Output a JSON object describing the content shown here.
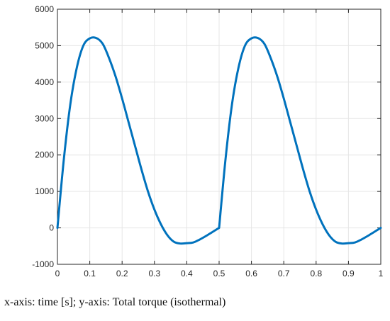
{
  "caption": "x-axis: time [s]; y-axis: Total torque (isothermal)",
  "chart_data": {
    "type": "line",
    "title": "",
    "xlabel": "",
    "ylabel": "",
    "xlim": [
      0,
      1
    ],
    "ylim": [
      -1000,
      6000
    ],
    "x_ticks": [
      0,
      0.1,
      0.2,
      0.3,
      0.4,
      0.5,
      0.6,
      0.7,
      0.8,
      0.9,
      1
    ],
    "x_tick_labels": [
      "0",
      "0.1",
      "0.2",
      "0.3",
      "0.4",
      "0.5",
      "0.6",
      "0.7",
      "0.8",
      "0.9",
      "1"
    ],
    "y_ticks": [
      -1000,
      0,
      1000,
      2000,
      3000,
      4000,
      5000,
      6000
    ],
    "y_tick_labels": [
      "-1000",
      "0",
      "1000",
      "2000",
      "3000",
      "4000",
      "5000",
      "6000"
    ],
    "grid": true,
    "series_color": "#0072BD",
    "series": [
      {
        "x": [
          0,
          0.02,
          0.04,
          0.06,
          0.08,
          0.1,
          0.12,
          0.14,
          0.16,
          0.18,
          0.2,
          0.22,
          0.24,
          0.26,
          0.28,
          0.3,
          0.32,
          0.34,
          0.36,
          0.38,
          0.4,
          0.42,
          0.44,
          0.46,
          0.48,
          0.5,
          0.5,
          0.52,
          0.54,
          0.56,
          0.58,
          0.6,
          0.62,
          0.64,
          0.66,
          0.68,
          0.7,
          0.72,
          0.74,
          0.76,
          0.78,
          0.8,
          0.82,
          0.84,
          0.86,
          0.88,
          0.9,
          0.92,
          0.94,
          0.96,
          0.98,
          1
        ],
        "y": [
          0,
          1900,
          3400,
          4400,
          5000,
          5200,
          5210,
          5050,
          4650,
          4150,
          3550,
          2900,
          2250,
          1600,
          1000,
          500,
          100,
          -200,
          -380,
          -430,
          -420,
          -400,
          -320,
          -220,
          -110,
          0,
          0,
          1900,
          3400,
          4400,
          5000,
          5200,
          5210,
          5050,
          4650,
          4150,
          3550,
          2900,
          2250,
          1600,
          1000,
          500,
          100,
          -200,
          -380,
          -430,
          -420,
          -400,
          -320,
          -220,
          -110,
          0
        ]
      }
    ]
  }
}
